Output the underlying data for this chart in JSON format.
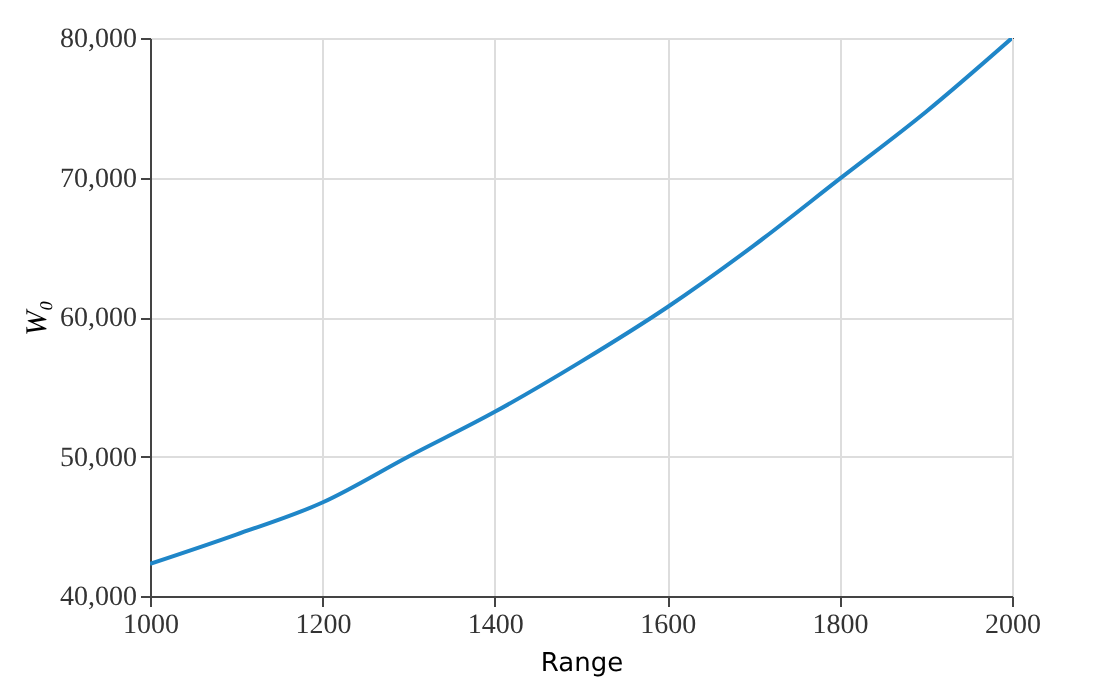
{
  "chart_data": {
    "type": "line",
    "xlabel": "Range",
    "ylabel": "W₀",
    "x": [
      1000,
      1100,
      1200,
      1300,
      1400,
      1500,
      1600,
      1700,
      1800,
      1900,
      2000
    ],
    "series": [
      {
        "color": "#1f86c8",
        "values": [
          42300,
          44400,
          46700,
          50000,
          53200,
          56800,
          60700,
          65100,
          69900,
          74700,
          80000
        ]
      }
    ],
    "xlim": [
      1000,
      2000
    ],
    "xticks": [
      1000,
      1200,
      1400,
      1600,
      1800,
      2000
    ],
    "ylim": [
      40000,
      80000
    ],
    "yticks": [
      {
        "value": 40000,
        "label": "40,000"
      },
      {
        "value": 50000,
        "label": "50,000"
      },
      {
        "value": 60000,
        "label": "60,000"
      },
      {
        "value": 70000,
        "label": "70,000"
      },
      {
        "value": 80000,
        "label": "80,000"
      }
    ],
    "grid": true
  }
}
